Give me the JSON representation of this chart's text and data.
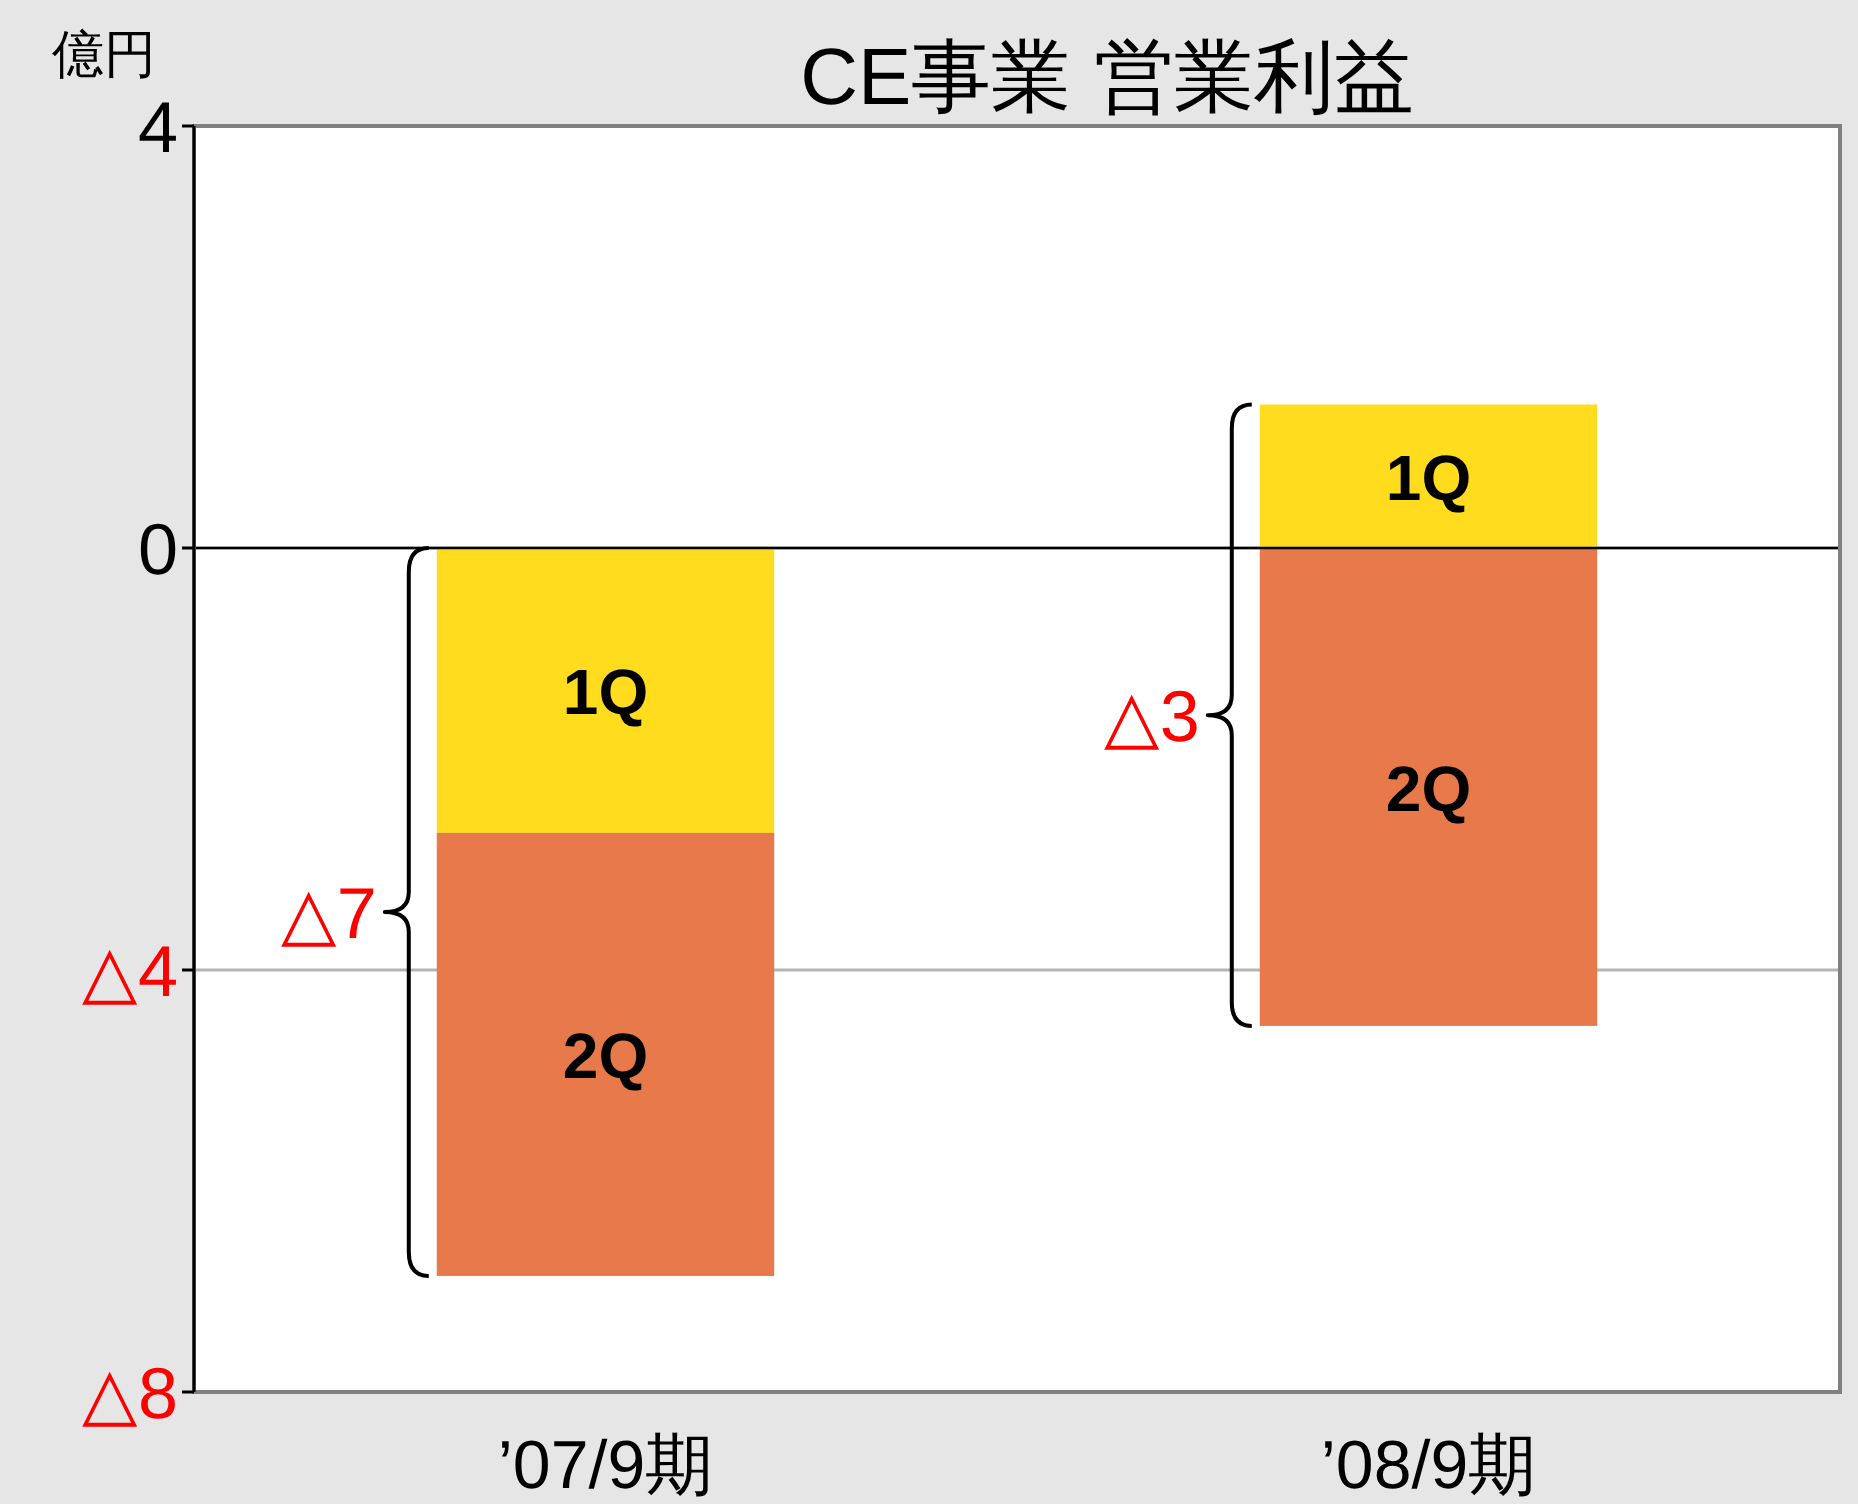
{
  "chart_data": {
    "type": "bar",
    "title": "CE事業 営業利益",
    "ylabel": "億円",
    "categories": [
      "’07/9期",
      "’08/9期"
    ],
    "stacked": true,
    "series": [
      {
        "name": "1Q",
        "color": "#ffdc1e",
        "values": [
          -2.7,
          1.36
        ]
      },
      {
        "name": "2Q",
        "color": "#e8794a",
        "values": [
          -4.2,
          -4.53
        ]
      }
    ],
    "ylim": [
      -8,
      4
    ],
    "yticks": [
      {
        "value": -8,
        "label": "△8"
      },
      {
        "value": -4,
        "label": "△4"
      },
      0,
      4
    ],
    "grid": "y",
    "ref_lines": [
      {
        "axis": "y",
        "value": 0,
        "color": "#000000"
      }
    ],
    "annotations": [
      "△7",
      "△3"
    ]
  }
}
